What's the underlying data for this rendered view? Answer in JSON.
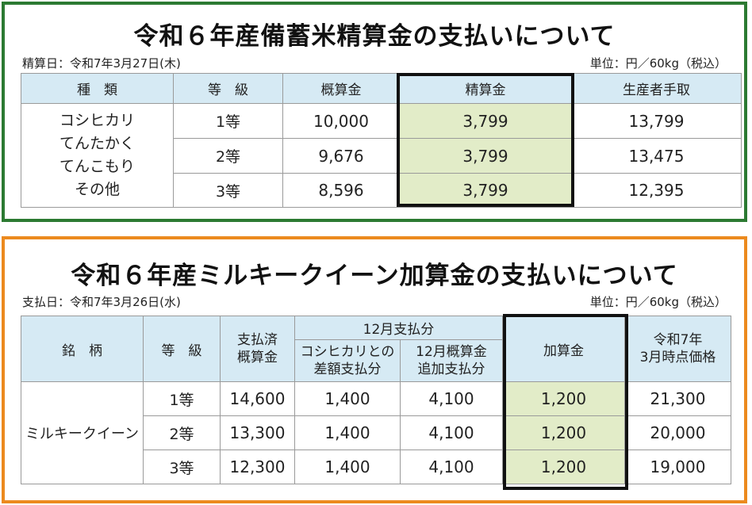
{
  "section1": {
    "title": "令和６年産備蓄米精算金の支払いについて",
    "date": "精算日：令和7年3月27日(木)",
    "unit": "単位：円／60kg（税込）",
    "headers": [
      "種　類",
      "等　級",
      "概算金",
      "精算金",
      "生産者手取"
    ],
    "variety_lines": [
      "コシヒカリ",
      "てんたかく",
      "てんこもり",
      "その他"
    ],
    "rows": [
      {
        "grade": "1等",
        "estimate": "10,000",
        "settlement": "3,799",
        "take": "13,799"
      },
      {
        "grade": "2等",
        "estimate": "9,676",
        "settlement": "3,799",
        "take": "13,475"
      },
      {
        "grade": "3等",
        "estimate": "8,596",
        "settlement": "3,799",
        "take": "12,395"
      }
    ]
  },
  "section2": {
    "title": "令和６年産ミルキークイーン加算金の支払いについて",
    "date": "支払日：令和7年3月26日(水)",
    "unit": "単位：円／60kg（税込）",
    "headers": {
      "brand": "銘　柄",
      "grade": "等　級",
      "paid_line1": "支払済",
      "paid_line2": "概算金",
      "dec": "12月支払分",
      "diff_line1": "コシヒカリとの",
      "diff_line2": "差額支払分",
      "add_line1": "12月概算金",
      "add_line2": "追加支払分",
      "bonus": "加算金",
      "price_line1": "令和7年",
      "price_line2": "3月時点価格"
    },
    "brand_name": "ミルキークイーン",
    "rows": [
      {
        "grade": "1等",
        "paid": "14,600",
        "diff": "1,400",
        "add": "4,100",
        "bonus": "1,200",
        "price": "21,300"
      },
      {
        "grade": "2等",
        "paid": "13,300",
        "diff": "1,400",
        "add": "4,100",
        "bonus": "1,200",
        "price": "20,000"
      },
      {
        "grade": "3等",
        "paid": "12,300",
        "diff": "1,400",
        "add": "4,100",
        "bonus": "1,200",
        "price": "19,000"
      }
    ]
  }
}
